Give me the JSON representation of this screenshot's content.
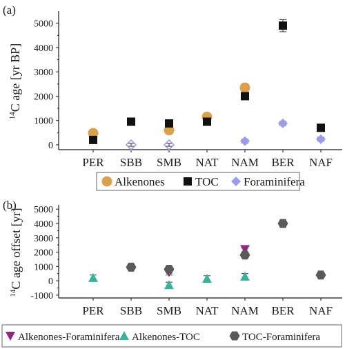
{
  "colors": {
    "alkenones": "#D9A14E",
    "toc": "#111111",
    "foraminifera": "#9B9BEA",
    "alk_foram": "#8E2A7E",
    "alk_toc": "#3BB19C",
    "toc_foram": "#5A5A5A",
    "axis": "#1a1a1a"
  },
  "chart_data": [
    {
      "panel_label": "(a)",
      "type": "scatter",
      "title": "",
      "xlabel": "",
      "ylabel_sup": "14",
      "ylabel_main": "C age [yr BP]",
      "categories": [
        "PER",
        "SBB",
        "SMB",
        "NAT",
        "NAM",
        "BER",
        "NAF"
      ],
      "ylim": [
        -200,
        5500
      ],
      "yticks": [
        0,
        1000,
        2000,
        3000,
        4000,
        5000
      ],
      "grid": false,
      "legend_position": "bottom",
      "series": [
        {
          "name": "Alkenones",
          "marker": "circle",
          "color": "#D9A14E",
          "points": [
            {
              "category": "PER",
              "y": 480,
              "err": 150
            },
            {
              "category": "SMB",
              "y": 600,
              "err": 150
            },
            {
              "category": "NAT",
              "y": 1150,
              "err": 150
            },
            {
              "category": "NAM",
              "y": 2350,
              "err": 150
            }
          ]
        },
        {
          "name": "TOC",
          "marker": "square",
          "color": "#111111",
          "points": [
            {
              "category": "PER",
              "y": 200,
              "err": 80
            },
            {
              "category": "SBB",
              "y": 950,
              "err": 80
            },
            {
              "category": "SMB",
              "y": 880,
              "err": 80
            },
            {
              "category": "NAT",
              "y": 950,
              "err": 80
            },
            {
              "category": "NAM",
              "y": 2000,
              "err": 80
            },
            {
              "category": "BER",
              "y": 4900,
              "err": 250
            },
            {
              "category": "NAF",
              "y": 700,
              "err": 80
            }
          ]
        },
        {
          "name": "Foraminifera",
          "marker": "diamond",
          "color": "#9B9BEA",
          "points": [
            {
              "category": "SBB",
              "y": 0,
              "err": 60,
              "hollow": true
            },
            {
              "category": "SMB",
              "y": 0,
              "err": 60,
              "hollow": true
            },
            {
              "category": "NAM",
              "y": 150,
              "err": 80
            },
            {
              "category": "BER",
              "y": 880,
              "err": 80
            },
            {
              "category": "NAF",
              "y": 230,
              "err": 80
            }
          ]
        }
      ]
    },
    {
      "panel_label": "(b)",
      "type": "scatter",
      "title": "",
      "xlabel": "",
      "ylabel_sup": "14",
      "ylabel_main": "C age offset [yr]",
      "categories": [
        "PER",
        "SBB",
        "SMB",
        "NAT",
        "NAM",
        "BER",
        "NAF"
      ],
      "ylim": [
        -1200,
        5300
      ],
      "yticks": [
        -1000,
        0,
        1000,
        2000,
        3000,
        4000,
        5000
      ],
      "grid": false,
      "legend_position": "bottom",
      "series": [
        {
          "name": "Alkenones-Foraminifera",
          "marker": "triangle-down",
          "color": "#8E2A7E",
          "points": [
            {
              "category": "SMB",
              "y": 600,
              "err": 200
            },
            {
              "category": "NAM",
              "y": 2200,
              "err": 200
            }
          ]
        },
        {
          "name": "Alkenones-TOC",
          "marker": "triangle-up",
          "color": "#3BB19C",
          "points": [
            {
              "category": "PER",
              "y": 200,
              "err": 200
            },
            {
              "category": "SMB",
              "y": -300,
              "err": 200
            },
            {
              "category": "NAT",
              "y": 150,
              "err": 200
            },
            {
              "category": "NAM",
              "y": 300,
              "err": 200
            }
          ]
        },
        {
          "name": "TOC-Foraminifera",
          "marker": "hexagon",
          "color": "#5A5A5A",
          "points": [
            {
              "category": "SBB",
              "y": 950,
              "err": 150
            },
            {
              "category": "SMB",
              "y": 800,
              "err": 150
            },
            {
              "category": "NAM",
              "y": 1800,
              "err": 200
            },
            {
              "category": "BER",
              "y": 4000,
              "err": 250
            },
            {
              "category": "NAF",
              "y": 400,
              "err": 150
            }
          ]
        }
      ]
    }
  ]
}
